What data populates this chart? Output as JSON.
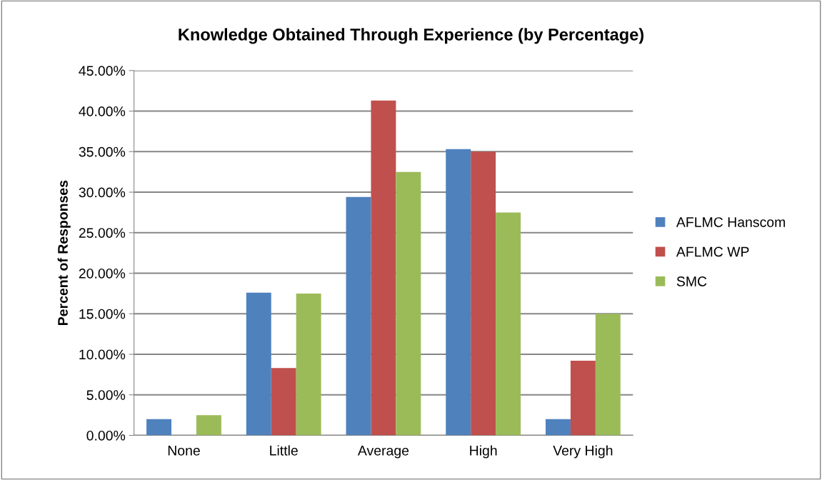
{
  "chart_data": {
    "type": "bar",
    "title": "Knowledge Obtained Through Experience (by Percentage)",
    "ylabel": "Percent of Responses",
    "categories": [
      "None",
      "Little",
      "Average",
      "High",
      "Very High"
    ],
    "series": [
      {
        "name": "AFLMC Hanscom",
        "color": "#4f81bd",
        "values": [
          2.0,
          17.6,
          29.4,
          35.3,
          2.0
        ]
      },
      {
        "name": "AFLMC WP",
        "color": "#c0504d",
        "values": [
          0,
          8.3,
          41.3,
          35.0,
          9.2
        ]
      },
      {
        "name": "SMC",
        "color": "#9bbb59",
        "values": [
          2.5,
          17.5,
          32.5,
          27.5,
          15.0
        ]
      }
    ],
    "ylim": [
      0,
      45
    ],
    "yticks": [
      {
        "value": 0,
        "label": "0.00%"
      },
      {
        "value": 5,
        "label": "5.00%"
      },
      {
        "value": 10,
        "label": "10.00%"
      },
      {
        "value": 15,
        "label": "15.00%"
      },
      {
        "value": 20,
        "label": "20.00%"
      },
      {
        "value": 25,
        "label": "25.00%"
      },
      {
        "value": 30,
        "label": "30.00%"
      },
      {
        "value": 35,
        "label": "35.00%"
      },
      {
        "value": 40,
        "label": "40.00%"
      },
      {
        "value": 45,
        "label": "45.00%"
      }
    ],
    "grid": "y",
    "legend": "right"
  }
}
